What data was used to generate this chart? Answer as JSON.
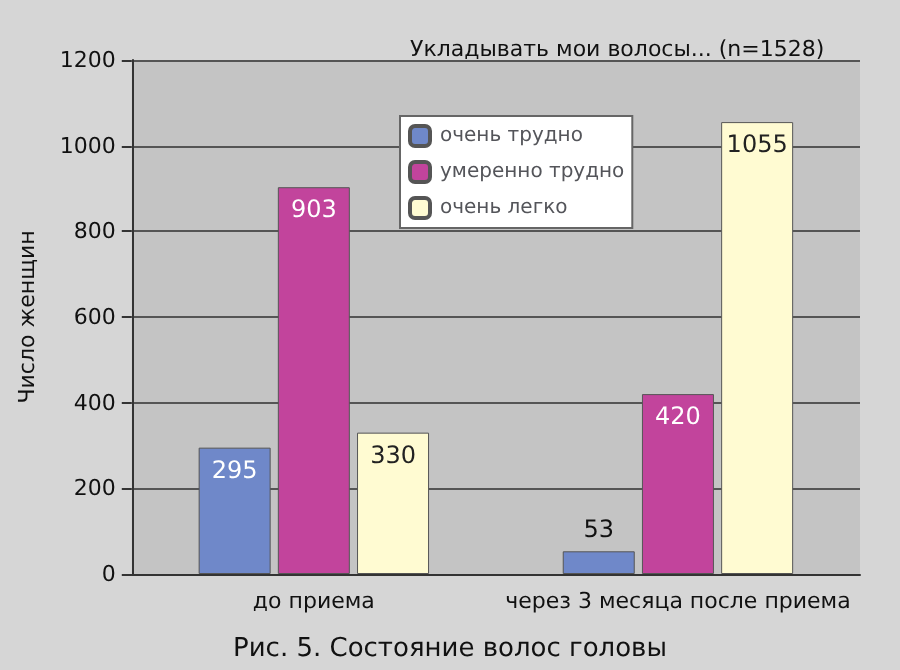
{
  "chart_data": {
    "type": "bar",
    "title": "Укладывать мои волосы... (n=1528)",
    "ylabel": "Число женщин",
    "annotations": [
      "Рис. 5. Состояние волос головы"
    ],
    "categories": [
      "до приема",
      "через 3 месяца после приема"
    ],
    "series": [
      {
        "name": "очень трудно",
        "color": "#6f88c9",
        "values": [
          295,
          53
        ]
      },
      {
        "name": "умеренно трудно",
        "color": "#c2449c",
        "values": [
          903,
          420
        ]
      },
      {
        "name": "очень легко",
        "color": "#fffbd2",
        "values": [
          330,
          1055
        ]
      }
    ],
    "ylim": [
      0,
      1200
    ],
    "yticks": [
      0,
      200,
      400,
      600,
      800,
      1000,
      1200
    ],
    "grid": "y",
    "legend": "top",
    "data_labels": true
  }
}
